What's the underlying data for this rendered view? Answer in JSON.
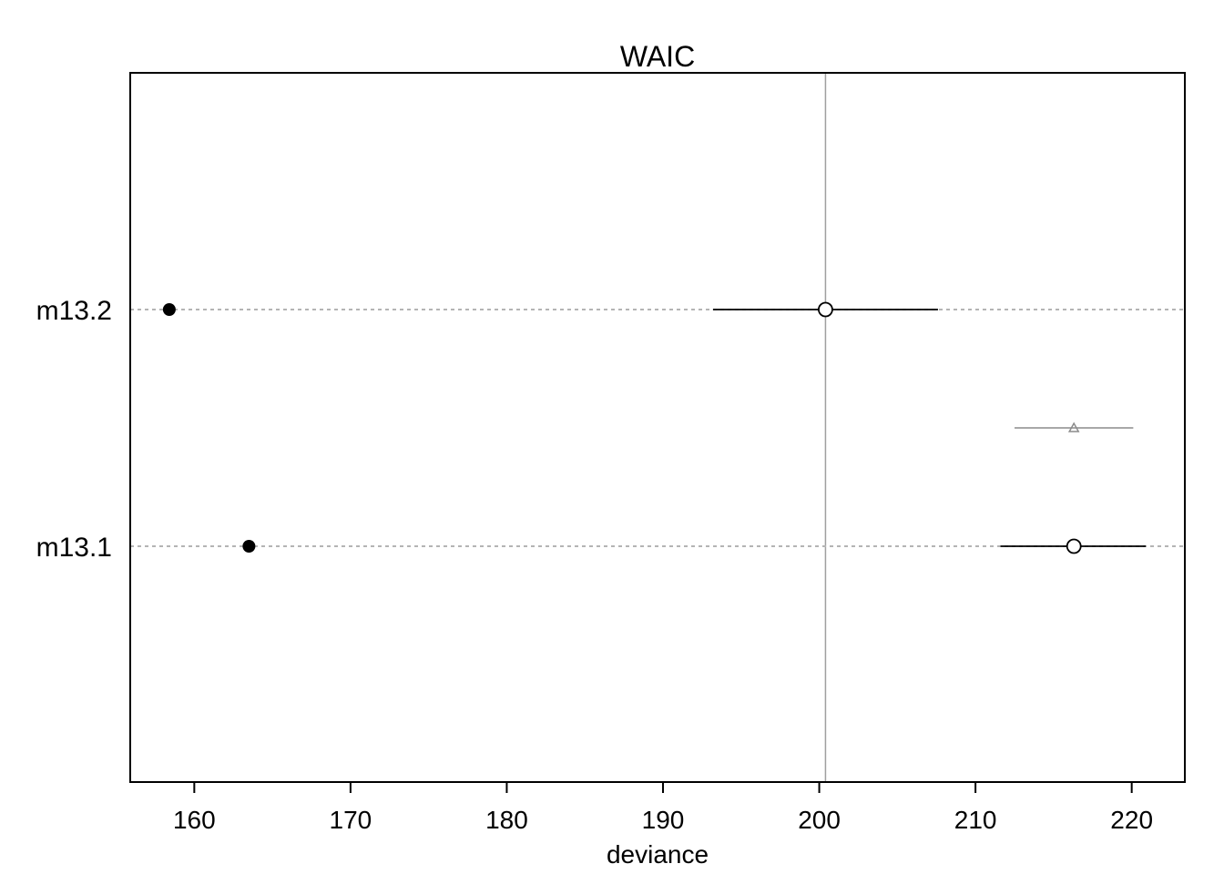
{
  "chart_data": {
    "type": "scatter",
    "title": "WAIC",
    "xlabel": "deviance",
    "ylabel": "",
    "xlim": [
      155.9,
      223.4
    ],
    "x_ticks": [
      160,
      170,
      180,
      190,
      200,
      210,
      220
    ],
    "grid": false,
    "reference_line": {
      "x": 200.4,
      "color": "#a0a0a0"
    },
    "models": [
      {
        "name": "m13.2",
        "in_sample_deviance": 158.4,
        "waic": 200.4,
        "waic_interval": [
          193.2,
          207.6
        ]
      },
      {
        "name": "m13.1",
        "in_sample_deviance": 163.5,
        "waic": 216.3,
        "waic_interval": [
          211.6,
          220.9
        ]
      }
    ],
    "differences": [
      {
        "waic": 216.3,
        "interval": [
          212.5,
          220.1
        ]
      }
    ],
    "colors": {
      "axis": "#000000",
      "row_line": "#b4b4b4",
      "reference": "#a0a0a0",
      "difference": "#8c8c8c",
      "point": "#000000"
    }
  }
}
